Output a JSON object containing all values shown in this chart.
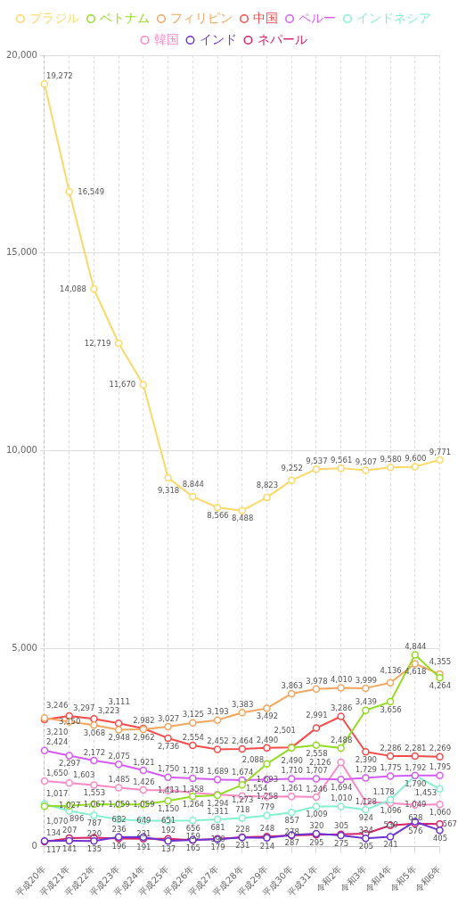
{
  "chart_data": {
    "type": "line",
    "categories": [
      "平成20年",
      "平成21年",
      "平成22年",
      "平成23年",
      "平成24年",
      "平成25年",
      "平成26年",
      "平成27年",
      "平成28年",
      "平成29年",
      "平成30年",
      "平成31年",
      "令和2年",
      "令和3年",
      "令和4年",
      "令和5年",
      "令和6年"
    ],
    "series": [
      {
        "name": "ブラジル",
        "color": "#fdd868",
        "values": [
          19272,
          16549,
          14088,
          12719,
          11670,
          9318,
          8844,
          8566,
          8488,
          8823,
          9252,
          9537,
          9561,
          9507,
          9580,
          9600,
          9771
        ],
        "value_labels": [
          "19,272",
          "16,549",
          "14,088",
          "12,719",
          "11,670",
          "9,318",
          "8,844",
          "8,566",
          "8,488",
          "8,823",
          "9,252",
          "9,537",
          "9,561",
          "9,507",
          "9,580",
          "9,600",
          "9,771"
        ]
      },
      {
        "name": "ベトナム",
        "color": "#94dc22",
        "values": [
          1017,
          1027,
          1067,
          1059,
          1059,
          1150,
          1264,
          1294,
          1554,
          2088,
          2490,
          2558,
          2488,
          3439,
          3656,
          4844,
          4264
        ],
        "value_labels": [
          "1,017",
          "1,027",
          "1,067",
          "1,059",
          "1,059",
          "1,150",
          "1,264",
          "1,294",
          "1,554",
          "2,088",
          "2,490",
          "2,558",
          "2,488",
          "3,439",
          "3,656",
          "4,844",
          "4,264"
        ]
      },
      {
        "name": "フィリピン",
        "color": "#f4a55e",
        "values": [
          3246,
          3150,
          3068,
          2948,
          2962,
          3027,
          3125,
          3193,
          3383,
          3492,
          3863,
          3978,
          4010,
          3999,
          4136,
          4618,
          4355
        ],
        "value_labels": [
          "3,246",
          "3,150",
          "3,068",
          "2,948",
          "2,962",
          "3,027",
          "3,125",
          "3,193",
          "3,383",
          "3,492",
          "3,863",
          "3,978",
          "4,010",
          "3,999",
          "4,136",
          "4,618",
          "4,355"
        ]
      },
      {
        "name": "中国",
        "color": "#f74a4a",
        "values": [
          3210,
          3297,
          3223,
          3111,
          2982,
          2736,
          2554,
          2452,
          2464,
          2490,
          2501,
          2991,
          3286,
          2390,
          2286,
          2281,
          2269
        ],
        "value_labels": [
          "3,210",
          "3,297",
          "3,223",
          "3,111",
          "2,982",
          "2,736",
          "2,554",
          "2,452",
          "2,464",
          "2,490",
          "2,501",
          "2,991",
          "3,286",
          "2,390",
          "2,286",
          "2,281",
          "2,269"
        ]
      },
      {
        "name": "ペルー",
        "color": "#d45cf2",
        "values": [
          2424,
          2297,
          2172,
          2075,
          1921,
          1750,
          1718,
          1689,
          1674,
          1693,
          1710,
          1707,
          1694,
          1729,
          1775,
          1792,
          1795
        ],
        "value_labels": [
          "2,424",
          "2,297",
          "2,172",
          "2,075",
          "1,921",
          "1,750",
          "1,718",
          "1,689",
          "1,674",
          "1,693",
          "1,710",
          "1,707",
          "1,694",
          "1,729",
          "1,775",
          "1,792",
          "1,795"
        ]
      },
      {
        "name": "インドネシア",
        "color": "#84f0cd",
        "values": [
          1070,
          896,
          787,
          682,
          649,
          651,
          656,
          681,
          718,
          779,
          857,
          1009,
          1010,
          924,
          1178,
          1790,
          1453
        ],
        "value_labels": [
          "1,070",
          "896",
          "787",
          "682",
          "649",
          "651",
          "656",
          "681",
          "718",
          "779",
          "857",
          "1,009",
          "1,010",
          "924",
          "1,178",
          "1,790",
          "1,453"
        ]
      },
      {
        "name": "韓国",
        "color": "#fb8ac4",
        "values": [
          1650,
          1603,
          1553,
          1485,
          1426,
          1413,
          1358,
          1311,
          1273,
          1258,
          1261,
          1246,
          2126,
          1128,
          1096,
          1049,
          1060
        ],
        "value_labels": [
          "1,650",
          "1,603",
          "1,553",
          "1,485",
          "1,426",
          "1,413",
          "1,358",
          "1,311",
          "1,273",
          "1,258",
          "1,261",
          "1,246",
          "2,126",
          "1,128",
          "1,096",
          "1,049",
          "1,060"
        ]
      },
      {
        "name": "インド",
        "color": "#6d32d0",
        "values": [
          134,
          141,
          135,
          236,
          231,
          137,
          165,
          179,
          228,
          214,
          287,
          320,
          275,
          205,
          241,
          628,
          405
        ],
        "value_labels": [
          "134",
          "141",
          "135",
          "236",
          "231",
          "137",
          "165",
          "179",
          "228",
          "214",
          "287",
          "320",
          "275",
          "205",
          "241",
          "628",
          "405"
        ]
      },
      {
        "name": "ネパール",
        "color": "#d4246a",
        "values": [
          117,
          207,
          220,
          196,
          191,
          192,
          159,
          190,
          231,
          248,
          278,
          295,
          305,
          324,
          530,
          576,
          567
        ],
        "value_labels": [
          "117",
          "207",
          "220",
          "196",
          "191",
          "192",
          "159",
          "190",
          "231",
          "248",
          "278",
          "295",
          "305",
          "324",
          "530",
          "576",
          "567"
        ]
      }
    ],
    "ylim": [
      0,
      20000
    ],
    "yticks": [
      0,
      {
        "value": 5000,
        "label": "5,000"
      },
      {
        "value": 10000,
        "label": "10,000"
      },
      {
        "value": 15000,
        "label": "15,000"
      },
      {
        "value": 20000,
        "label": "20,000"
      }
    ],
    "grid": true,
    "legend": "top",
    "marker": "circle",
    "line_style": "solid",
    "data_labels": true
  }
}
